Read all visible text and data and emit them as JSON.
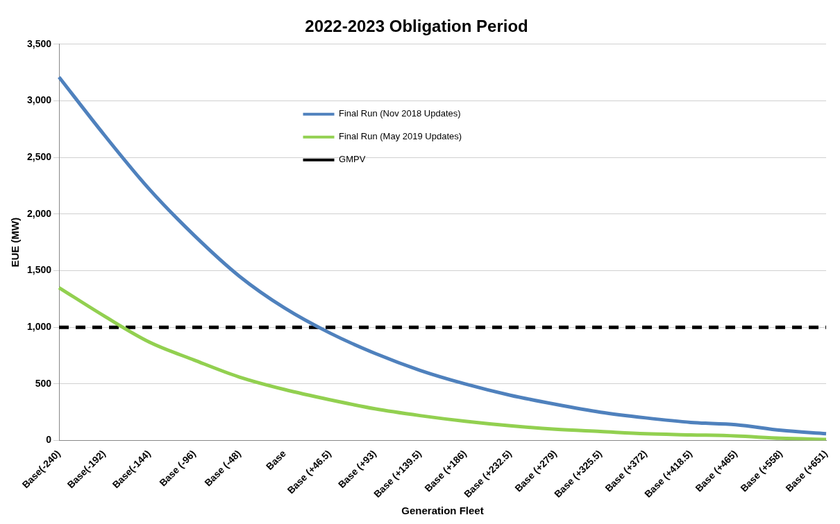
{
  "chart_data": {
    "type": "line",
    "title": "2022-2023 Obligation Period",
    "xlabel": "Generation Fleet",
    "ylabel": "EUE (MW)",
    "categories": [
      "Base(-240)",
      "Base(-192)",
      "Base(-144)",
      "Base (-96)",
      "Base (-48)",
      "Base",
      "Base (+46.5)",
      "Base (+93)",
      "Base (+139.5)",
      "Base (+186)",
      "Base (+232.5)",
      "Base (+279)",
      "Base (+325.5)",
      "Base (+372)",
      "Base (+418.5)",
      "Base (+465)",
      "Base (+558)",
      "Base (+651)"
    ],
    "series": [
      {
        "name": "Final Run (Nov 2018 Updates)",
        "color": "#4f81bd",
        "values": [
          3210,
          2700,
          2220,
          1810,
          1450,
          1170,
          950,
          770,
          620,
          500,
          400,
          320,
          250,
          200,
          160,
          140,
          90,
          60
        ]
      },
      {
        "name": "Final Run (May 2019 Updates)",
        "color": "#92d050",
        "values": [
          1350,
          1100,
          870,
          710,
          560,
          450,
          360,
          280,
          220,
          170,
          130,
          100,
          80,
          60,
          50,
          40,
          20,
          10
        ]
      },
      {
        "name": "GMPV",
        "color": "#000000",
        "line_style": "dashed",
        "values": [
          1000,
          1000,
          1000,
          1000,
          1000,
          1000,
          1000,
          1000,
          1000,
          1000,
          1000,
          1000,
          1000,
          1000,
          1000,
          1000,
          1000,
          1000
        ]
      }
    ],
    "ylim": [
      0,
      3500
    ],
    "yticks": [
      {
        "value": 0,
        "label": "0"
      },
      {
        "value": 500,
        "label": "500"
      },
      {
        "value": 1000,
        "label": "1,000"
      },
      {
        "value": 1500,
        "label": "1,500"
      },
      {
        "value": 2000,
        "label": "2,000"
      },
      {
        "value": 2500,
        "label": "2,500"
      },
      {
        "value": 3000,
        "label": "3,000"
      },
      {
        "value": 3500,
        "label": "3,500"
      }
    ],
    "grid": "y",
    "legend": "top",
    "marker": "none",
    "line_style": "solid"
  }
}
